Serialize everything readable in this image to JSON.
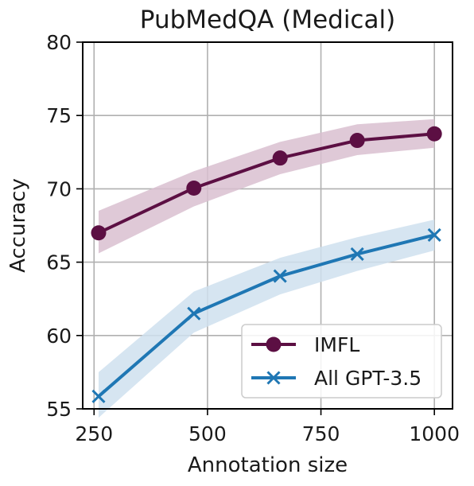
{
  "chart_data": {
    "type": "line",
    "title": "PubMedQA (Medical)",
    "xlabel": "Annotation size",
    "ylabel": "Accuracy",
    "xlim": [
      225,
      1040
    ],
    "ylim": [
      55,
      80
    ],
    "xticks": [
      250,
      500,
      750,
      1000
    ],
    "yticks": [
      55,
      60,
      65,
      70,
      75,
      80
    ],
    "xtick_labels": [
      "250",
      "500",
      "750",
      "1000"
    ],
    "ytick_labels": [
      "55",
      "60",
      "65",
      "70",
      "75",
      "80"
    ],
    "grid": true,
    "legend_position": "lower-right",
    "series": [
      {
        "name": "IMFL",
        "marker": "circle",
        "color": "#5c0f43",
        "band_color": "#d9bfd0",
        "x": [
          260,
          470,
          660,
          830,
          1000
        ],
        "values": [
          67.0,
          70.05,
          72.1,
          73.3,
          73.75
        ],
        "upper": [
          68.5,
          71.2,
          73.2,
          74.4,
          74.75
        ],
        "lower": [
          65.6,
          68.8,
          71.0,
          72.3,
          72.8
        ]
      },
      {
        "name": "All GPT-3.5",
        "marker": "x",
        "color": "#1f77b4",
        "band_color": "#cfe0ef",
        "x": [
          260,
          470,
          660,
          830,
          1000
        ],
        "values": [
          55.85,
          61.5,
          64.05,
          65.55,
          66.85
        ],
        "upper": [
          57.5,
          63.0,
          65.3,
          66.7,
          67.9
        ],
        "lower": [
          54.4,
          60.2,
          62.8,
          64.4,
          65.8
        ]
      }
    ]
  }
}
